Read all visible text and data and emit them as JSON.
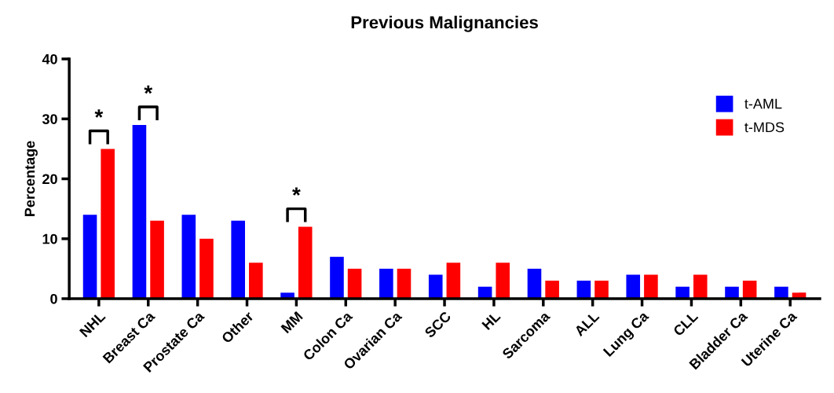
{
  "chart_data": {
    "type": "bar",
    "title": "Previous Malignancies",
    "ylabel": "Percentage",
    "categories": [
      "NHL",
      "Breast Ca",
      "Prostate Ca",
      "Other",
      "MM",
      "Colon Ca",
      "Ovarian Ca",
      "SCC",
      "HL",
      "Sarcoma",
      "ALL",
      "Lung Ca",
      "CLL",
      "Bladder Ca",
      "Uterine Ca"
    ],
    "series": [
      {
        "name": "t-AML",
        "color": "#0000ff",
        "values": [
          14,
          29,
          14,
          13,
          1,
          7,
          5,
          4,
          2,
          5,
          3,
          4,
          2,
          2,
          2
        ]
      },
      {
        "name": "t-MDS",
        "color": "#ff0000",
        "values": [
          25,
          13,
          10,
          6,
          12,
          5,
          5,
          6,
          6,
          3,
          3,
          4,
          4,
          3,
          1
        ]
      }
    ],
    "ylim": [
      0,
      40
    ],
    "yticks": [
      0,
      10,
      20,
      30,
      40
    ],
    "grid": false,
    "legend": "top right",
    "annotations": [
      {
        "text": "*",
        "x": "NHL",
        "y": 25
      },
      {
        "text": "*",
        "x": "Breast Ca",
        "y": 29
      },
      {
        "text": "*",
        "x": "MM",
        "y": 12
      }
    ]
  }
}
